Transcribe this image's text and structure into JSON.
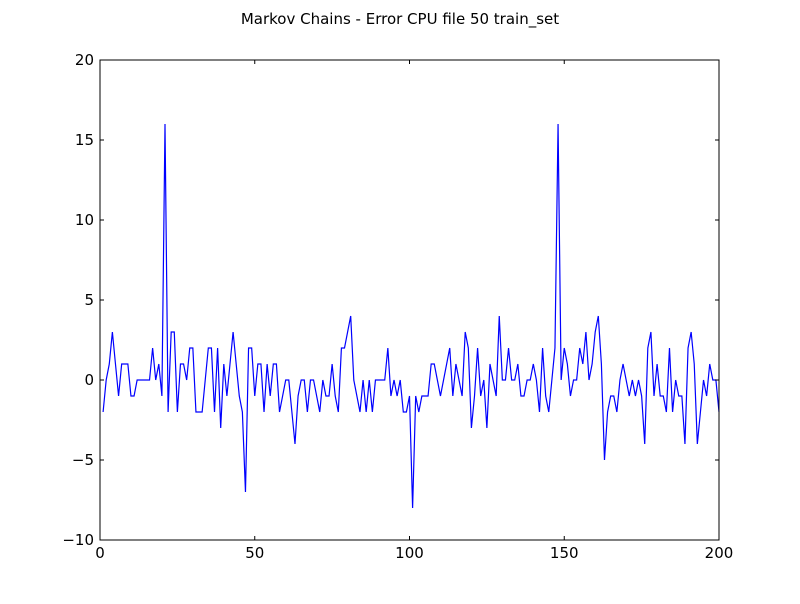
{
  "chart_data": {
    "type": "line",
    "title": "Markov Chains - Error CPU file 50 train_set",
    "xlabel": "",
    "ylabel": "",
    "xlim": [
      0,
      200
    ],
    "ylim": [
      -10,
      20
    ],
    "x_ticks": [
      0,
      50,
      100,
      150,
      200
    ],
    "y_ticks": [
      -10,
      -5,
      0,
      5,
      10,
      15,
      20
    ],
    "grid": false,
    "line_color": "#0000ff",
    "series": [
      {
        "x_start": 1,
        "x_step": 1,
        "values": [
          -2,
          0,
          1,
          3,
          1,
          -1,
          1,
          1,
          1,
          -1,
          -1,
          0,
          0,
          0,
          0,
          0,
          2,
          0,
          1,
          -1,
          16,
          -2,
          3,
          3,
          -2,
          1,
          1,
          0,
          2,
          2,
          -2,
          -2,
          -2,
          0,
          2,
          2,
          -2,
          2,
          -3,
          1,
          -1,
          1,
          3,
          1,
          -1,
          -2,
          -7,
          2,
          2,
          -1,
          1,
          1,
          -2,
          1,
          -1,
          1,
          1,
          -2,
          -1,
          0,
          0,
          -2,
          -4,
          -1,
          0,
          0,
          -2,
          0,
          0,
          -1,
          -2,
          0,
          -1,
          -1,
          1,
          -1,
          -2,
          2,
          2,
          3,
          4,
          0,
          -1,
          -2,
          0,
          -2,
          0,
          -2,
          0,
          0,
          0,
          0,
          2,
          -1,
          0,
          -1,
          0,
          -2,
          -2,
          -1,
          -8,
          -1,
          -2,
          -1,
          -1,
          -1,
          1,
          1,
          0,
          -1,
          0,
          1,
          2,
          -1,
          1,
          0,
          -1,
          3,
          2,
          -3,
          -1,
          2,
          -1,
          0,
          -3,
          1,
          0,
          -1,
          4,
          0,
          0,
          2,
          0,
          0,
          1,
          -1,
          -1,
          0,
          0,
          1,
          0,
          -2,
          2,
          -1,
          -2,
          0,
          2,
          16,
          0,
          2,
          1,
          -1,
          0,
          0,
          2,
          1,
          3,
          0,
          1,
          3,
          4,
          1,
          -5,
          -2,
          -1,
          -1,
          -2,
          0,
          1,
          0,
          -1,
          0,
          -1,
          0,
          -1,
          -4,
          2,
          3,
          -1,
          1,
          -1,
          -1,
          -2,
          2,
          -2,
          0,
          -1,
          -1,
          -4,
          2,
          3,
          1,
          -4,
          -2,
          0,
          -1,
          1,
          0,
          0,
          -2
        ]
      }
    ]
  }
}
